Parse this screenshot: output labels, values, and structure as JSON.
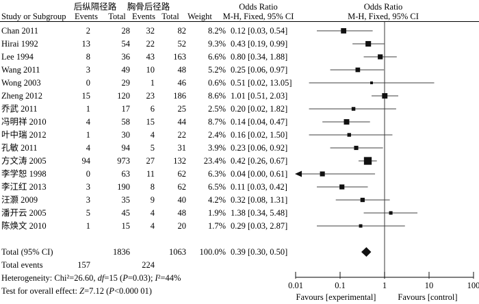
{
  "header": {
    "group1": "后纵隔径路",
    "group2": "胸骨后径路",
    "study": "Study or Subgroup",
    "events1": "Events",
    "total1": "Total",
    "events2": "Events",
    "total2": "Total",
    "weight": "Weight",
    "odds_ratio_text_col_title": "Odds Ratio",
    "odds_ratio_plot_col_title": "Odds Ratio",
    "method_text_col": "M-H, Fixed, 95% CI",
    "method_plot_col": "M-H, Fixed, 95% CI"
  },
  "chart_data": {
    "type": "scatter",
    "variant": "forest-plot",
    "effect_measure": "Odds Ratio, M-H, Fixed, 95% CI",
    "x_axis": {
      "scale": "log",
      "range": [
        0.01,
        100
      ],
      "ticks": [
        "0.01",
        "0.1",
        "1",
        "10",
        "100"
      ],
      "tick_values": [
        0.01,
        0.1,
        1,
        10,
        100
      ]
    },
    "favours_left": "Favours [experimental]",
    "favours_right": "Favours [control]",
    "studies": [
      {
        "study": "Chan 2011",
        "events1": "2",
        "total1": "28",
        "events2": "32",
        "total2": "82",
        "weight": "8.2%",
        "weight_pct": 8.2,
        "or": 0.12,
        "ci_low": 0.03,
        "ci_high": 0.54,
        "or_ci_text": "0.12 [0.03, 0.54]"
      },
      {
        "study": "Hirai 1992",
        "events1": "13",
        "total1": "54",
        "events2": "22",
        "total2": "52",
        "weight": "9.3%",
        "weight_pct": 9.3,
        "or": 0.43,
        "ci_low": 0.19,
        "ci_high": 0.99,
        "or_ci_text": "0.43 [0.19, 0.99]"
      },
      {
        "study": "Lee 1994",
        "events1": "8",
        "total1": "36",
        "events2": "43",
        "total2": "163",
        "weight": "6.6%",
        "weight_pct": 6.6,
        "or": 0.8,
        "ci_low": 0.34,
        "ci_high": 1.88,
        "or_ci_text": "0.80 [0.34, 1.88]"
      },
      {
        "study": "Wang 2011",
        "events1": "3",
        "total1": "49",
        "events2": "10",
        "total2": "48",
        "weight": "5.2%",
        "weight_pct": 5.2,
        "or": 0.25,
        "ci_low": 0.06,
        "ci_high": 0.97,
        "or_ci_text": "0.25 [0.06, 0.97]"
      },
      {
        "study": "Wong 2003",
        "events1": "0",
        "total1": "29",
        "events2": "1",
        "total2": "46",
        "weight": "0.6%",
        "weight_pct": 0.6,
        "or": 0.51,
        "ci_low": 0.02,
        "ci_high": 13.05,
        "or_ci_text": "0.51 [0.02, 13.05]"
      },
      {
        "study": "Zheng 2012",
        "events1": "15",
        "total1": "120",
        "events2": "23",
        "total2": "186",
        "weight": "8.6%",
        "weight_pct": 8.6,
        "or": 1.01,
        "ci_low": 0.51,
        "ci_high": 2.03,
        "or_ci_text": "1.01 [0.51, 2.03]"
      },
      {
        "study": "乔武 2011",
        "events1": "1",
        "total1": "17",
        "events2": "6",
        "total2": "25",
        "weight": "2.5%",
        "weight_pct": 2.5,
        "or": 0.2,
        "ci_low": 0.02,
        "ci_high": 1.82,
        "or_ci_text": "0.20 [0.02, 1.82]"
      },
      {
        "study": "冯明祥 2010",
        "events1": "4",
        "total1": "58",
        "events2": "15",
        "total2": "44",
        "weight": "8.7%",
        "weight_pct": 8.7,
        "or": 0.14,
        "ci_low": 0.04,
        "ci_high": 0.47,
        "or_ci_text": "0.14 [0.04, 0.47]"
      },
      {
        "study": "叶中瑞 2012",
        "events1": "1",
        "total1": "30",
        "events2": "4",
        "total2": "22",
        "weight": "2.4%",
        "weight_pct": 2.4,
        "or": 0.16,
        "ci_low": 0.02,
        "ci_high": 1.5,
        "or_ci_text": "0.16 [0.02, 1.50]"
      },
      {
        "study": "孔敏 2011",
        "events1": "4",
        "total1": "94",
        "events2": "5",
        "total2": "31",
        "weight": "3.9%",
        "weight_pct": 3.9,
        "or": 0.23,
        "ci_low": 0.06,
        "ci_high": 0.92,
        "or_ci_text": "0.23 [0.06, 0.92]"
      },
      {
        "study": "方文涛 2005",
        "events1": "94",
        "total1": "973",
        "events2": "27",
        "total2": "132",
        "weight": "23.4%",
        "weight_pct": 23.4,
        "or": 0.42,
        "ci_low": 0.26,
        "ci_high": 0.67,
        "or_ci_text": "0.42 [0.26, 0.67]"
      },
      {
        "study": "李学恕 1998",
        "events1": "0",
        "total1": "63",
        "events2": "11",
        "total2": "62",
        "weight": "6.3%",
        "weight_pct": 6.3,
        "or": 0.04,
        "ci_low": 0.0,
        "ci_high": 0.61,
        "or_ci_text": "0.04 [0.00, 0.61]"
      },
      {
        "study": "李江红 2013",
        "events1": "3",
        "total1": "190",
        "events2": "8",
        "total2": "62",
        "weight": "6.5%",
        "weight_pct": 6.5,
        "or": 0.11,
        "ci_low": 0.03,
        "ci_high": 0.42,
        "or_ci_text": "0.11 [0.03, 0.42]"
      },
      {
        "study": "汪灏 2009",
        "events1": "3",
        "total1": "35",
        "events2": "9",
        "total2": "40",
        "weight": "4.2%",
        "weight_pct": 4.2,
        "or": 0.32,
        "ci_low": 0.08,
        "ci_high": 1.31,
        "or_ci_text": "0.32 [0.08, 1.31]"
      },
      {
        "study": "潘开云 2005",
        "events1": "5",
        "total1": "45",
        "events2": "4",
        "total2": "48",
        "weight": "1.9%",
        "weight_pct": 1.9,
        "or": 1.38,
        "ci_low": 0.34,
        "ci_high": 5.48,
        "or_ci_text": "1.38 [0.34, 5.48]"
      },
      {
        "study": "陈焕文 2010",
        "events1": "1",
        "total1": "15",
        "events2": "4",
        "total2": "20",
        "weight": "1.7%",
        "weight_pct": 1.7,
        "or": 0.29,
        "ci_low": 0.03,
        "ci_high": 2.87,
        "or_ci_text": "0.29 [0.03, 2.87]"
      }
    ],
    "total": {
      "label": "Total (95% CI)",
      "total1": "1836",
      "total2": "1063",
      "weight": "100.0%",
      "or": 0.39,
      "ci_low": 0.3,
      "ci_high": 0.5,
      "or_ci_text": "0.39 [0.30, 0.50]"
    },
    "total_events": {
      "label": "Total events",
      "events1": "157",
      "events2": "224"
    }
  },
  "footer": {
    "heterogeneity_segments": [
      [
        "Heterogeneity: Chi²=26.60, ",
        false
      ],
      [
        "df",
        true
      ],
      [
        "=15 (",
        false
      ],
      [
        "P",
        true
      ],
      [
        "=0.03); ",
        false
      ],
      [
        "I",
        true
      ],
      [
        "²=44%",
        false
      ]
    ],
    "test_segments": [
      [
        "Test for overall effect: ",
        false
      ],
      [
        "Z",
        true
      ],
      [
        "=7.12 (",
        false
      ],
      [
        "P",
        true
      ],
      [
        "<0.000 01)",
        false
      ]
    ]
  },
  "colors": {
    "text": "#000000",
    "marker": "#111111",
    "ci_line": "#3d3d3d",
    "null_line": "#595959",
    "axis": "#333333"
  }
}
